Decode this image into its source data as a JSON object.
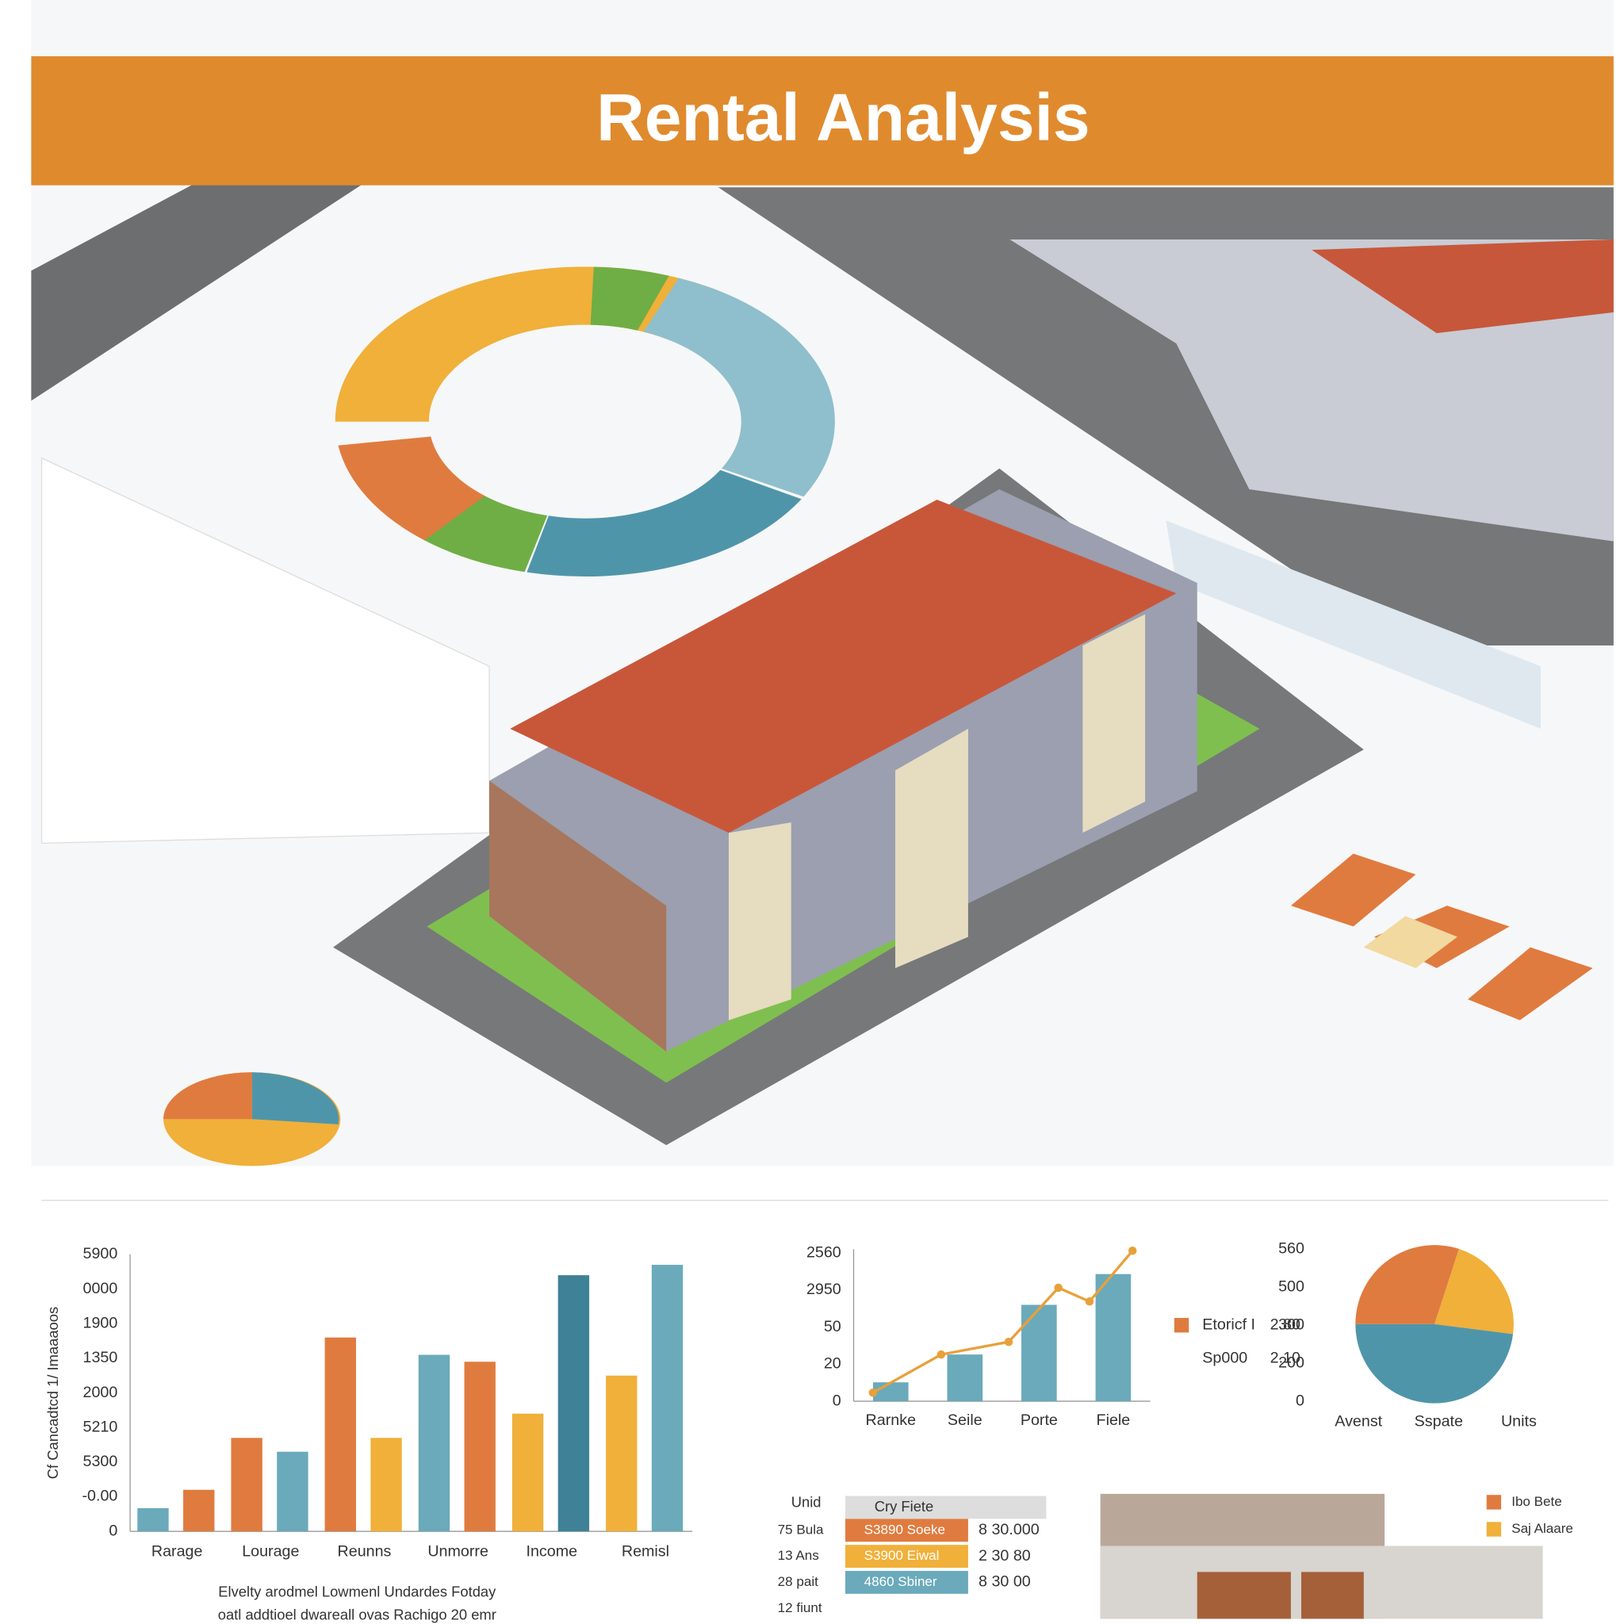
{
  "header": {
    "title": "Rental Analysis"
  },
  "chart_data": [
    {
      "type": "bar",
      "y_label": "Cf Cancadtcd 1/ Imaaaoos",
      "categories": [
        "Rarage",
        "Lourage",
        "Reunns",
        "Unmorre",
        "Income",
        "Remisl"
      ],
      "series": [
        {
          "values": [
            0.67,
            2.7,
            5.6,
            5.1,
            3.4,
            4.5
          ],
          "colors": [
            "#6aaabb",
            "#e07b3f",
            "#e07b3f",
            "#6aaabb",
            "#f0b03a",
            "#f0b03a"
          ]
        },
        {
          "values": [
            1.2,
            2.3,
            2.7,
            4.9,
            7.4,
            7.7
          ],
          "colors": [
            "#e07b3f",
            "#6aaabb",
            "#f0b03a",
            "#e07b3f",
            "#3f8196",
            "#6aaabb"
          ]
        }
      ],
      "ylim": [
        0,
        8
      ],
      "yticks": [
        0,
        {
          "value": 1,
          "label": "-0.00"
        },
        {
          "value": 2,
          "label": "5300"
        },
        {
          "value": 3,
          "label": "5210"
        },
        {
          "value": 4,
          "label": "2000"
        },
        {
          "value": 5,
          "label": "1350"
        },
        {
          "value": 6,
          "label": "1900"
        },
        {
          "value": 7,
          "label": "0000"
        },
        {
          "value": 8,
          "label": "5900"
        }
      ],
      "caption": [
        "Elvelty arodmel Lowmenl Undardes Fotday",
        "oatl addtioel dwareall ovas Rachigo 20 emr"
      ]
    },
    {
      "type": "combo",
      "categories": [
        "Rarnke",
        "Seile",
        "Porte",
        "Fiele"
      ],
      "bars": {
        "color": "#6aaabb",
        "values": [
          0.51,
          1.26,
          2.6,
          3.43
        ]
      },
      "line": {
        "color": "#e8a03a",
        "x": [
          -0.24,
          0.68,
          1.59,
          2.26,
          2.68,
          3.26
        ],
        "values": [
          0.23,
          1.26,
          1.6,
          3.06,
          2.69,
          4.06
        ]
      },
      "xlim": [
        -0.5,
        3.5
      ],
      "ylim": [
        0,
        4.1
      ],
      "yticks": [
        0,
        {
          "value": 1,
          "label": "20"
        },
        {
          "value": 2,
          "label": "50"
        },
        {
          "value": 3,
          "label": "2950"
        },
        {
          "value": 4,
          "label": "2560"
        }
      ],
      "legend": [
        {
          "name": "Etoricf I",
          "note": "2.80",
          "color": "#e07b3f"
        },
        {
          "name": "Sp000",
          "note": "2.10"
        }
      ]
    },
    {
      "type": "pie",
      "categories": [
        "Avenst",
        "Sspate",
        "Units"
      ],
      "values": [
        30,
        22,
        48
      ],
      "colors": [
        "#e07b3f",
        "#f0b03a",
        "#4f95aa"
      ],
      "ylim": [
        0,
        4
      ],
      "yticks": [
        0,
        {
          "value": 1,
          "label": "200"
        },
        {
          "value": 2,
          "label": "300"
        },
        {
          "value": 3,
          "label": "500"
        },
        {
          "value": 4,
          "label": "560"
        }
      ]
    }
  ],
  "table": {
    "header": [
      "Unid",
      "Cry Fiete"
    ],
    "rows": [
      [
        "75 Bula",
        "S3890 Soeke",
        "8 30.000"
      ],
      [
        "13 Ans",
        "S3900 Eiwal",
        "2 30 80"
      ],
      [
        "28 pait",
        "4860 Sbiner",
        "8 30 00"
      ],
      [
        "12 fiunt"
      ]
    ]
  },
  "photo_legend": [
    {
      "label": "Ibo Bete",
      "color": "#e07b3f"
    },
    {
      "label": "Saj Alaare",
      "color": "#f0b03a"
    }
  ]
}
